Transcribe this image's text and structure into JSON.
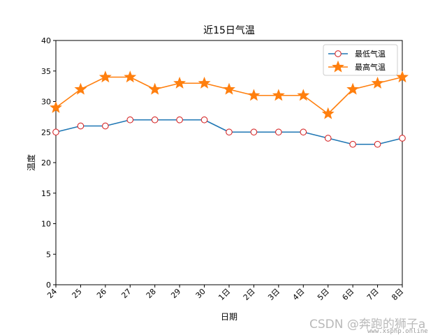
{
  "chart_data": {
    "type": "line",
    "title": "近15日气温",
    "xlabel": "日期",
    "ylabel": "温度",
    "categories": [
      "24",
      "25",
      "26",
      "27",
      "28",
      "29",
      "30",
      "1日",
      "2日",
      "3日",
      "4日",
      "5日",
      "6日",
      "7日",
      "8日"
    ],
    "ylim": [
      0,
      40
    ],
    "yticks": [
      0,
      5,
      10,
      15,
      20,
      25,
      30,
      35,
      40
    ],
    "grid": false,
    "legend_position": "top-right",
    "series": [
      {
        "name": "最低气温",
        "values": [
          25,
          26,
          26,
          27,
          27,
          27,
          27,
          25,
          25,
          25,
          25,
          24,
          23,
          23,
          24
        ],
        "color": "#1f77b4",
        "marker": "circle",
        "marker_face": "#ffffff",
        "marker_edge": "#d62728"
      },
      {
        "name": "最高气温",
        "values": [
          29,
          32,
          34,
          34,
          32,
          33,
          33,
          32,
          31,
          31,
          31,
          28,
          32,
          33,
          34
        ],
        "color": "#ff7f0e",
        "marker": "star",
        "marker_face": "#ff7f0e",
        "marker_edge": "#ff7f0e"
      }
    ]
  },
  "watermark": {
    "text": "CSDN @奔跑的狮子a",
    "site": "www.xsphp.online"
  }
}
